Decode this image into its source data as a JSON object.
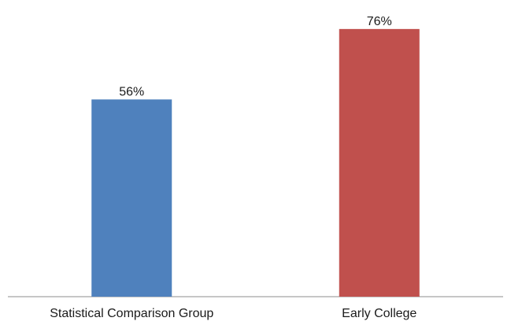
{
  "chart_data": {
    "type": "bar",
    "categories": [
      "Statistical Comparison Group",
      "Early College"
    ],
    "values": [
      56,
      76
    ],
    "data_labels": [
      "56%",
      "76%"
    ],
    "colors": [
      "#4f81bd",
      "#c0504d"
    ],
    "ylim": [
      0,
      82
    ],
    "grid": false,
    "legend": "none",
    "title": "",
    "xlabel": "",
    "ylabel": ""
  }
}
